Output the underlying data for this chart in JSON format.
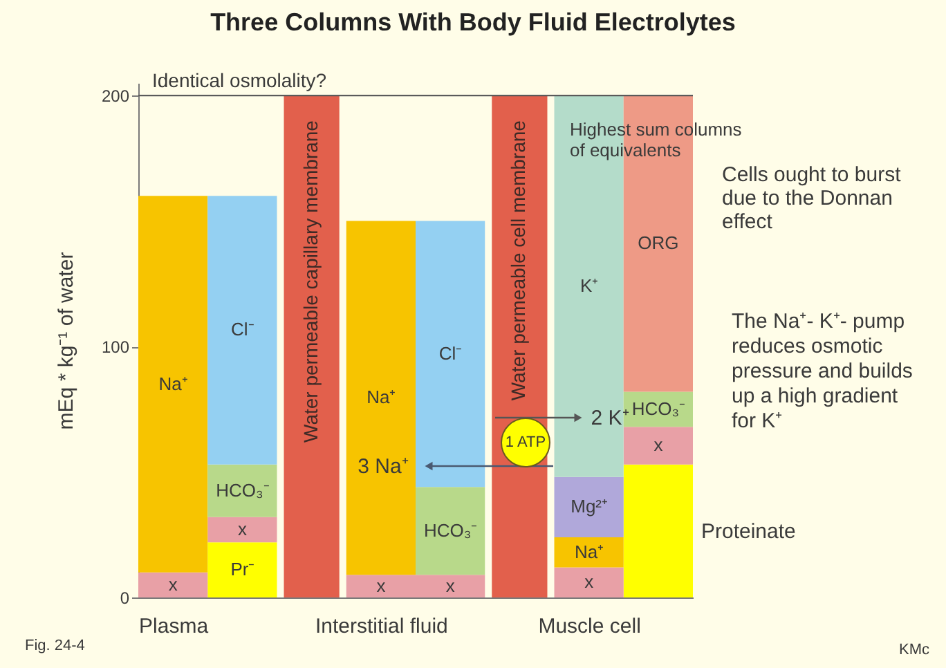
{
  "chart_data": {
    "type": "bar",
    "stacked": true,
    "title": "Three Columns With Body Fluid Electrolytes",
    "ylabel": "mEq * kg⁻¹ of water",
    "categories": [
      "Plasma",
      null,
      null,
      "Interstitial fluid",
      null,
      null,
      "Muscle cell",
      null
    ],
    "series": [
      {
        "name": "Pr⁻",
        "color": "#ffff00",
        "values": [
          null,
          22,
          null,
          null,
          null,
          null,
          null,
          null
        ]
      },
      {
        "name": "Proteinate",
        "color": "#ffff00",
        "values": [
          null,
          null,
          null,
          null,
          null,
          null,
          null,
          53
        ]
      },
      {
        "name": "x",
        "color": "#e8a0a6",
        "values": [
          10,
          10,
          null,
          9,
          9,
          null,
          12,
          15
        ]
      },
      {
        "name": "Na⁺",
        "color": "#f7c400",
        "values": [
          150,
          null,
          null,
          141,
          null,
          null,
          12,
          null
        ]
      },
      {
        "name": "Mg²⁺",
        "color": "#b0a8da",
        "values": [
          null,
          null,
          null,
          null,
          null,
          null,
          24,
          null
        ]
      },
      {
        "name": "K⁺",
        "color": "#b4dcca",
        "values": [
          null,
          null,
          null,
          null,
          null,
          null,
          152,
          null
        ]
      },
      {
        "name": "HCO₃⁻",
        "color": "#b8d98a",
        "values": [
          null,
          21,
          null,
          null,
          35,
          null,
          null,
          14
        ]
      },
      {
        "name": "Cl⁻",
        "color": "#94d0f2",
        "values": [
          null,
          107,
          null,
          null,
          106,
          null,
          null,
          null
        ]
      },
      {
        "name": "ORG",
        "color": "#ee9a86",
        "values": [
          null,
          null,
          null,
          null,
          null,
          null,
          null,
          118
        ]
      },
      {
        "name": "Water permeable capillary membrane",
        "color": "#e2604c",
        "values": [
          null,
          null,
          200,
          null,
          null,
          null,
          null,
          null
        ]
      },
      {
        "name": "Water permeable cell membrane",
        "color": "#e2604c",
        "values": [
          null,
          null,
          null,
          null,
          null,
          200,
          null,
          null
        ]
      }
    ],
    "ylim": [
      0,
      205
    ],
    "yticks": [
      0,
      100,
      200
    ],
    "ref_lines": [
      {
        "axis": "y",
        "value": 200,
        "label": "Identical osmolality?",
        "color": "#5a5a5a"
      }
    ],
    "annotations": [
      "Highest sum columns of equivalents",
      "Cells ought to burst due to the Donnan effect",
      "The Na⁺- K⁺- pump reduces osmotic pressure and builds up a high gradient for K⁺",
      "3 Na⁺",
      "2 K⁺",
      "1 ATP",
      "Fig. 24-4",
      "KMc"
    ]
  }
}
